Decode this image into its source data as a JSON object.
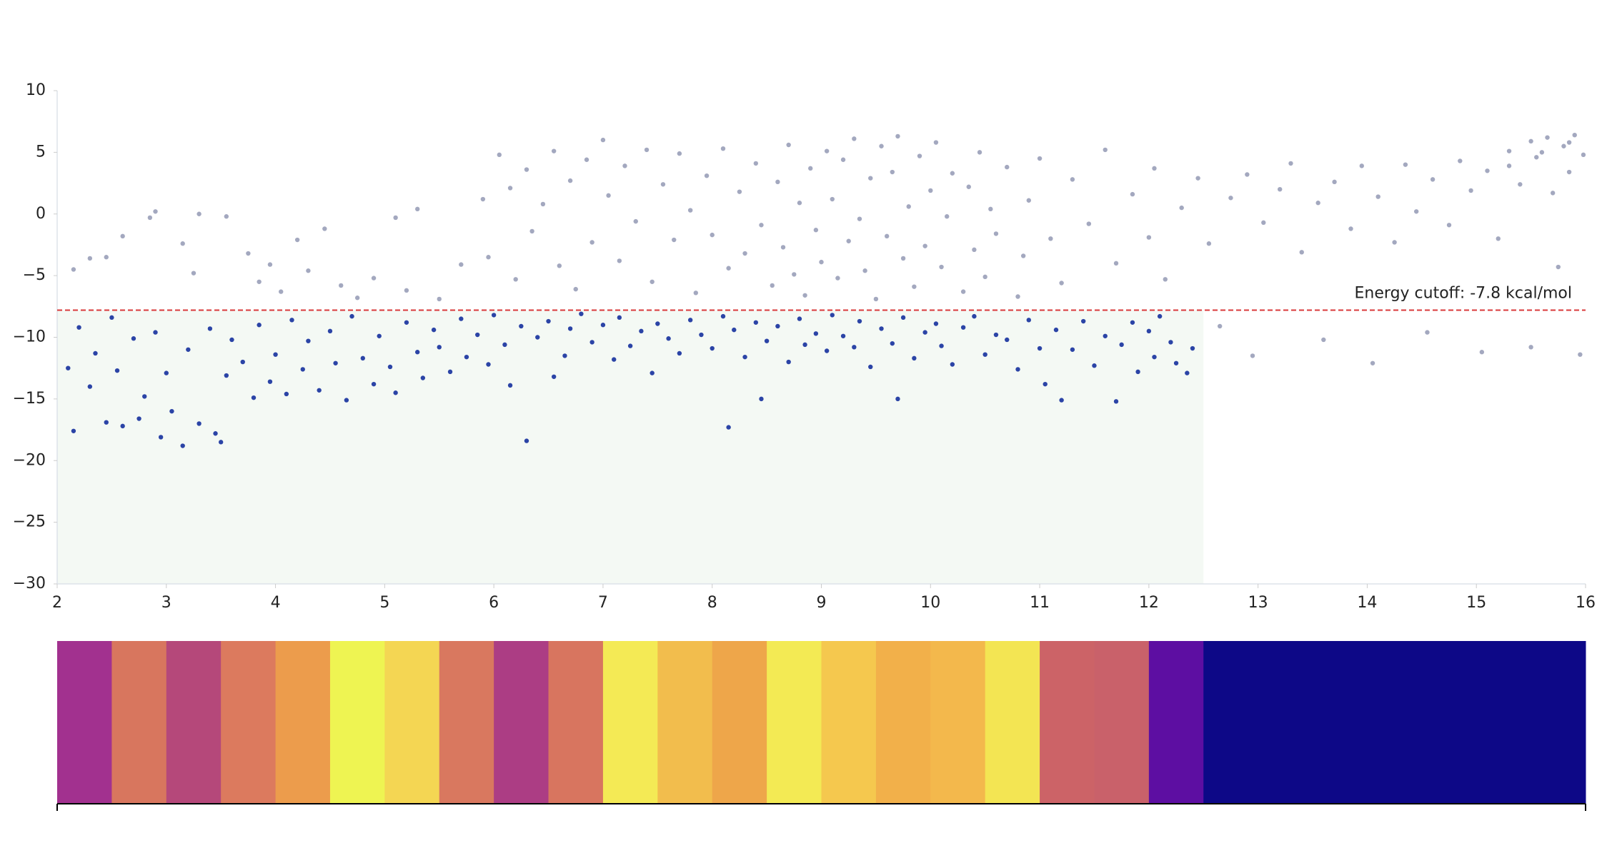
{
  "chart_data": {
    "type": "scatter",
    "xlim": [
      2,
      16
    ],
    "ylim": [
      -30,
      10
    ],
    "xticks": [
      2,
      3,
      4,
      5,
      6,
      7,
      8,
      9,
      10,
      11,
      12,
      13,
      14,
      15,
      16
    ],
    "yticks": [
      10,
      5,
      0,
      {
        "value": -5,
        "label": "−5"
      },
      {
        "value": -10,
        "label": "−10"
      },
      {
        "value": -15,
        "label": "−15"
      },
      {
        "value": -20,
        "label": "−20"
      },
      {
        "value": -25,
        "label": "−25"
      },
      {
        "value": -30,
        "label": "−30"
      }
    ],
    "cutoff": {
      "value": -7.8,
      "label": "Energy cutoff: -7.8 kcal/mol",
      "color": "#d9383a"
    },
    "highlight_x": [
      2,
      12.5
    ],
    "highlight_color": "#f4f9f4",
    "series": [
      {
        "color": "#a3a8bf",
        "x": [
          2.15,
          2.3,
          2.45,
          2.6,
          2.85,
          2.9,
          3.15,
          3.3,
          3.55,
          3.25,
          3.75,
          3.85,
          3.95,
          4.05,
          4.2,
          4.3,
          4.45,
          4.6,
          4.75,
          4.9,
          5.1,
          5.3,
          5.2,
          5.5,
          5.7,
          5.9,
          5.95,
          6.05,
          6.15,
          6.2,
          6.3,
          6.35,
          6.45,
          6.55,
          6.6,
          6.7,
          6.75,
          6.85,
          6.9,
          7.0,
          7.05,
          7.15,
          7.2,
          7.3,
          7.4,
          7.45,
          7.55,
          7.65,
          7.7,
          7.8,
          7.85,
          7.95,
          8.0,
          8.1,
          8.15,
          8.25,
          8.3,
          8.4,
          8.45,
          8.55,
          8.6,
          8.65,
          8.7,
          8.75,
          8.8,
          8.85,
          8.9,
          8.95,
          9.0,
          9.05,
          9.1,
          9.15,
          9.2,
          9.25,
          9.3,
          9.35,
          9.4,
          9.45,
          9.5,
          9.55,
          9.6,
          9.65,
          9.7,
          9.75,
          9.8,
          9.85,
          9.9,
          9.95,
          10.0,
          10.05,
          10.1,
          10.15,
          10.2,
          10.3,
          10.35,
          10.4,
          10.45,
          10.5,
          10.55,
          10.6,
          10.7,
          10.8,
          10.85,
          10.9,
          11.0,
          11.1,
          11.2,
          11.3,
          11.45,
          11.6,
          11.7,
          11.85,
          12.0,
          12.05,
          12.15,
          12.3,
          12.45,
          12.55,
          12.65,
          12.75,
          12.9,
          12.95,
          13.05,
          13.2,
          13.3,
          13.4,
          13.55,
          13.6,
          13.7,
          13.85,
          13.95,
          14.05,
          14.1,
          14.25,
          14.35,
          14.45,
          14.55,
          14.6,
          14.75,
          14.85,
          14.95,
          15.05,
          15.1,
          15.2,
          15.3,
          15.4,
          15.5,
          15.55,
          15.65,
          15.7,
          15.75,
          15.8,
          15.85,
          15.9,
          15.95,
          15.98,
          15.5,
          15.3,
          15.6,
          15.85
        ],
        "values": [
          -4.5,
          -3.6,
          -3.5,
          -1.8,
          -0.3,
          0.2,
          -2.4,
          0,
          -0.2,
          -4.8,
          -3.2,
          -5.5,
          -4.1,
          -6.3,
          -2.1,
          -4.6,
          -1.2,
          -5.8,
          -6.8,
          -5.2,
          -0.3,
          0.4,
          -6.2,
          -6.9,
          -4.1,
          1.2,
          -3.5,
          4.8,
          2.1,
          -5.3,
          3.6,
          -1.4,
          0.8,
          5.1,
          -4.2,
          2.7,
          -6.1,
          4.4,
          -2.3,
          6.0,
          1.5,
          -3.8,
          3.9,
          -0.6,
          5.2,
          -5.5,
          2.4,
          -2.1,
          4.9,
          0.3,
          -6.4,
          3.1,
          -1.7,
          5.3,
          -4.4,
          1.8,
          -3.2,
          4.1,
          -0.9,
          -5.8,
          2.6,
          -2.7,
          5.6,
          -4.9,
          0.9,
          -6.6,
          3.7,
          -1.3,
          -3.9,
          5.1,
          1.2,
          -5.2,
          4.4,
          -2.2,
          6.1,
          -0.4,
          -4.6,
          2.9,
          -6.9,
          5.5,
          -1.8,
          3.4,
          6.3,
          -3.6,
          0.6,
          -5.9,
          4.7,
          -2.6,
          1.9,
          5.8,
          -4.3,
          -0.2,
          3.3,
          -6.3,
          2.2,
          -2.9,
          5.0,
          -5.1,
          0.4,
          -1.6,
          3.8,
          -6.7,
          -3.4,
          1.1,
          4.5,
          -2.0,
          -5.6,
          2.8,
          -0.8,
          5.2,
          -4.0,
          1.6,
          -1.9,
          3.7,
          -5.3,
          0.5,
          2.9,
          -2.4,
          -9.1,
          1.3,
          3.2,
          -11.5,
          -0.7,
          2.0,
          4.1,
          -3.1,
          0.9,
          -10.2,
          2.6,
          -1.2,
          3.9,
          -12.1,
          1.4,
          -2.3,
          4.0,
          0.2,
          -9.6,
          2.8,
          -0.9,
          4.3,
          1.9,
          -11.2,
          3.5,
          -2.0,
          5.1,
          2.4,
          -10.8,
          4.6,
          6.2,
          1.7,
          -4.3,
          5.5,
          3.4,
          6.4,
          -11.4,
          4.8,
          5.9,
          3.9,
          5.0,
          5.8
        ]
      },
      {
        "color": "#2b44a6",
        "x": [
          2.1,
          2.15,
          2.2,
          2.3,
          2.35,
          2.45,
          2.5,
          2.55,
          2.6,
          2.7,
          2.75,
          2.8,
          2.9,
          2.95,
          3.0,
          3.05,
          3.15,
          3.2,
          3.3,
          3.4,
          3.45,
          3.5,
          3.55,
          3.6,
          3.7,
          3.8,
          3.85,
          3.95,
          4.0,
          4.1,
          4.15,
          4.25,
          4.3,
          4.4,
          4.5,
          4.55,
          4.65,
          4.7,
          4.8,
          4.9,
          4.95,
          5.05,
          5.1,
          5.2,
          5.3,
          5.35,
          5.45,
          5.5,
          5.6,
          5.7,
          5.75,
          5.85,
          5.95,
          6.0,
          6.1,
          6.15,
          6.25,
          6.3,
          6.4,
          6.5,
          6.55,
          6.65,
          6.7,
          6.8,
          6.9,
          7.0,
          7.1,
          7.15,
          7.25,
          7.35,
          7.45,
          7.5,
          7.6,
          7.7,
          7.8,
          7.9,
          8.0,
          8.1,
          8.15,
          8.2,
          8.3,
          8.4,
          8.45,
          8.5,
          8.6,
          8.7,
          8.8,
          8.85,
          8.95,
          9.05,
          9.1,
          9.2,
          9.3,
          9.35,
          9.45,
          9.55,
          9.65,
          9.7,
          9.75,
          9.85,
          9.95,
          10.05,
          10.1,
          10.2,
          10.3,
          10.4,
          10.5,
          10.6,
          10.7,
          10.8,
          10.9,
          11.0,
          11.05,
          11.15,
          11.2,
          11.3,
          11.4,
          11.5,
          11.6,
          11.7,
          11.75,
          11.85,
          11.9,
          12.0,
          12.05,
          12.1,
          12.2,
          12.25,
          12.35,
          12.4
        ],
        "values": [
          -12.5,
          -17.6,
          -9.2,
          -14.0,
          -11.3,
          -16.9,
          -8.4,
          -12.7,
          -17.2,
          -10.1,
          -16.6,
          -14.8,
          -9.6,
          -18.1,
          -12.9,
          -16.0,
          -18.8,
          -11.0,
          -17.0,
          -9.3,
          -17.8,
          -18.5,
          -13.1,
          -10.2,
          -12.0,
          -14.9,
          -9.0,
          -13.6,
          -11.4,
          -14.6,
          -8.6,
          -12.6,
          -10.3,
          -14.3,
          -9.5,
          -12.1,
          -15.1,
          -8.3,
          -11.7,
          -13.8,
          -9.9,
          -12.4,
          -14.5,
          -8.8,
          -11.2,
          -13.3,
          -9.4,
          -10.8,
          -12.8,
          -8.5,
          -11.6,
          -9.8,
          -12.2,
          -8.2,
          -10.6,
          -13.9,
          -9.1,
          -18.4,
          -10.0,
          -8.7,
          -13.2,
          -11.5,
          -9.3,
          -8.1,
          -10.4,
          -9.0,
          -11.8,
          -8.4,
          -10.7,
          -9.5,
          -12.9,
          -8.9,
          -10.1,
          -11.3,
          -8.6,
          -9.8,
          -10.9,
          -8.3,
          -17.3,
          -9.4,
          -11.6,
          -8.8,
          -15.0,
          -10.3,
          -9.1,
          -12.0,
          -8.5,
          -10.6,
          -9.7,
          -11.1,
          -8.2,
          -9.9,
          -10.8,
          -8.7,
          -12.4,
          -9.3,
          -10.5,
          -15.0,
          -8.4,
          -11.7,
          -9.6,
          -8.9,
          -10.7,
          -12.2,
          -9.2,
          -8.3,
          -11.4,
          -9.8,
          -10.2,
          -12.6,
          -8.6,
          -10.9,
          -13.8,
          -9.4,
          -15.1,
          -11.0,
          -8.7,
          -12.3,
          -9.9,
          -15.2,
          -10.6,
          -8.8,
          -12.8,
          -9.5,
          -11.6,
          -8.3,
          -10.4,
          -12.1,
          -12.9,
          -10.9
        ]
      }
    ],
    "heatmap": {
      "bins": [
        2,
        2.5,
        3,
        3.5,
        4,
        4.5,
        5,
        5.5,
        6,
        6.5,
        7,
        7.5,
        8,
        8.5,
        9,
        9.5,
        10,
        10.5,
        11,
        11.5,
        12,
        12.5,
        16
      ],
      "colors": [
        "#a2318f",
        "#d8765e",
        "#b5487a",
        "#dc7a5e",
        "#ec9c4c",
        "#eef452",
        "#f4d653",
        "#d9785f",
        "#ac3d84",
        "#d8755f",
        "#f4ea55",
        "#f2bd4d",
        "#eea64a",
        "#f3ea54",
        "#f5c84e",
        "#f2b04a",
        "#f3b84c",
        "#f3e553",
        "#cc6367",
        "#c9616a",
        "#5d0ea2",
        "#0d0887"
      ]
    }
  }
}
